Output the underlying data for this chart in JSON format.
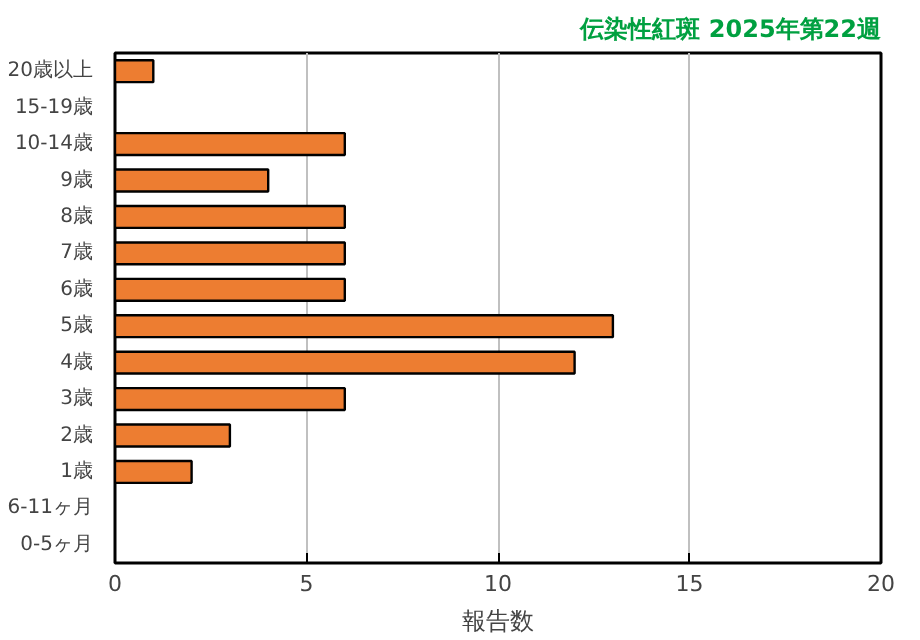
{
  "chart_data": {
    "type": "bar",
    "orientation": "horizontal",
    "title": "伝染性紅斑 2025年第22週",
    "xlabel": "報告数",
    "categories": [
      "20歳以上",
      "15-19歳",
      "10-14歳",
      "9歳",
      "8歳",
      "7歳",
      "6歳",
      "5歳",
      "4歳",
      "3歳",
      "2歳",
      "1歳",
      "6-11ヶ月",
      "0-5ヶ月"
    ],
    "values": [
      1,
      0,
      6,
      4,
      6,
      6,
      6,
      13,
      12,
      6,
      3,
      2,
      0,
      0
    ],
    "color": "#ed7d31",
    "xlim": [
      0,
      20
    ],
    "xticks": [
      0,
      5,
      10,
      15,
      20
    ],
    "grid": "x"
  }
}
